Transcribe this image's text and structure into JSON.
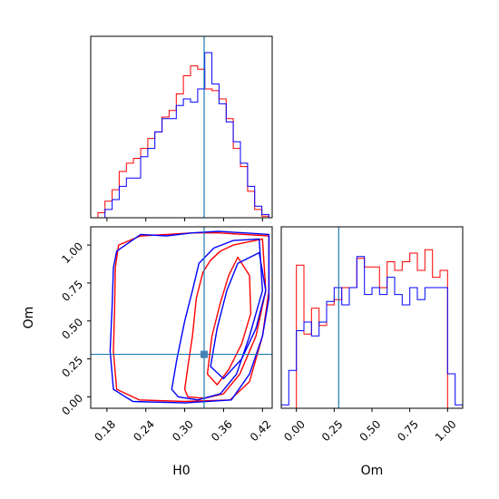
{
  "chart_data": [
    {
      "panel": "H0-marginal",
      "type": "histogram",
      "x_range": [
        0.155,
        0.435
      ],
      "truth": 0.33,
      "bin_edges": [
        0.155,
        0.166,
        0.177,
        0.188,
        0.199,
        0.21,
        0.221,
        0.232,
        0.243,
        0.254,
        0.265,
        0.276,
        0.287,
        0.298,
        0.309,
        0.32,
        0.331,
        0.342,
        0.353,
        0.364,
        0.375,
        0.386,
        0.397,
        0.408,
        0.419,
        0.43
      ],
      "series": [
        {
          "name": "red",
          "color": "#ff0000",
          "values": [
            0.0,
            0.03,
            0.1,
            0.17,
            0.28,
            0.33,
            0.36,
            0.42,
            0.48,
            0.52,
            0.61,
            0.65,
            0.75,
            0.86,
            0.92,
            0.9,
            0.78,
            0.77,
            0.72,
            0.6,
            0.42,
            0.31,
            0.16,
            0.05,
            0.01
          ]
        },
        {
          "name": "blue",
          "color": "#0000ff",
          "values": [
            0.0,
            0.0,
            0.05,
            0.11,
            0.19,
            0.24,
            0.24,
            0.37,
            0.42,
            0.52,
            0.6,
            0.6,
            0.68,
            0.72,
            0.7,
            0.78,
            1.0,
            0.81,
            0.69,
            0.58,
            0.46,
            0.33,
            0.19,
            0.07,
            0.02
          ]
        }
      ]
    },
    {
      "panel": "Om-marginal",
      "type": "histogram",
      "x_range": [
        -0.1,
        1.1
      ],
      "truth": 0.28,
      "series": [
        {
          "name": "red",
          "color": "#ff0000",
          "bin_edges": [
            0.0,
            0.05,
            0.1,
            0.15,
            0.2,
            0.25,
            0.3,
            0.35,
            0.4,
            0.45,
            0.5,
            0.55,
            0.6,
            0.65,
            0.7,
            0.75,
            0.8,
            0.85,
            0.9,
            0.95,
            1.0
          ],
          "values": [
            0.83,
            0.43,
            0.58,
            0.48,
            0.6,
            0.63,
            0.7,
            0.7,
            0.87,
            0.82,
            0.82,
            0.7,
            0.85,
            0.8,
            0.85,
            0.9,
            0.8,
            0.92,
            0.76,
            0.8
          ]
        },
        {
          "name": "blue",
          "color": "#0000ff",
          "bin_edges": [
            -0.1,
            -0.05,
            0.0,
            0.05,
            0.1,
            0.15,
            0.2,
            0.25,
            0.3,
            0.35,
            0.4,
            0.45,
            0.5,
            0.55,
            0.6,
            0.65,
            0.7,
            0.75,
            0.8,
            0.85,
            0.9,
            0.95,
            1.0,
            1.05,
            1.1
          ],
          "values": [
            0.02,
            0.22,
            0.45,
            0.5,
            0.42,
            0.5,
            0.62,
            0.7,
            0.6,
            0.7,
            0.88,
            0.66,
            0.7,
            0.66,
            0.76,
            0.66,
            0.6,
            0.7,
            0.63,
            0.7,
            0.7,
            0.7,
            0.2,
            0.02
          ]
        }
      ]
    },
    {
      "panel": "H0-Om-contours",
      "type": "contour",
      "x_range": [
        0.155,
        0.435
      ],
      "y_range": [
        -0.075,
        1.12
      ],
      "xlabel": "H0",
      "ylabel": "Om",
      "x_ticks": [
        0.18,
        0.24,
        0.3,
        0.36,
        0.42
      ],
      "x_tick_labels": [
        "0.18",
        "0.24",
        "0.30",
        "0.36",
        "0.42"
      ],
      "y_ticks": [
        0.0,
        0.25,
        0.5,
        0.75,
        1.0
      ],
      "y_tick_labels": [
        "0.00",
        "0.25",
        "0.50",
        "0.75",
        "1.00"
      ],
      "truth": {
        "x": 0.33,
        "y": 0.28
      },
      "truth_marker_color": "#4682b4",
      "series": [
        {
          "name": "red",
          "color": "#ff0000",
          "contours": [
            [
              [
                0.198,
                1.0
              ],
              [
                0.232,
                1.06
              ],
              [
                0.272,
                1.07
              ],
              [
                0.312,
                1.08
              ],
              [
                0.352,
                1.08
              ],
              [
                0.392,
                1.07
              ],
              [
                0.43,
                1.06
              ],
              [
                0.43,
                0.7
              ],
              [
                0.42,
                0.4
              ],
              [
                0.4,
                0.1
              ],
              [
                0.37,
                -0.02
              ],
              [
                0.3,
                -0.03
              ],
              [
                0.23,
                -0.02
              ],
              [
                0.195,
                0.05
              ],
              [
                0.19,
                0.3
              ],
              [
                0.192,
                0.6
              ],
              [
                0.193,
                0.85
              ],
              [
                0.198,
                1.0
              ]
            ],
            [
              [
                0.3,
                0.05
              ],
              [
                0.305,
                0.2
              ],
              [
                0.312,
                0.4
              ],
              [
                0.318,
                0.65
              ],
              [
                0.328,
                0.82
              ],
              [
                0.34,
                0.9
              ],
              [
                0.355,
                0.96
              ],
              [
                0.375,
                1.0
              ],
              [
                0.42,
                1.04
              ],
              [
                0.425,
                0.7
              ],
              [
                0.41,
                0.4
              ],
              [
                0.385,
                0.15
              ],
              [
                0.36,
                0.02
              ],
              [
                0.33,
                -0.01
              ],
              [
                0.305,
                0.0
              ],
              [
                0.3,
                0.05
              ]
            ],
            [
              [
                0.335,
                0.15
              ],
              [
                0.342,
                0.4
              ],
              [
                0.355,
                0.62
              ],
              [
                0.368,
                0.8
              ],
              [
                0.382,
                0.92
              ],
              [
                0.4,
                0.8
              ],
              [
                0.402,
                0.55
              ],
              [
                0.388,
                0.35
              ],
              [
                0.368,
                0.18
              ],
              [
                0.35,
                0.08
              ],
              [
                0.335,
                0.15
              ]
            ]
          ]
        },
        {
          "name": "blue",
          "color": "#0000ff",
          "contours": [
            [
              [
                0.195,
                0.96
              ],
              [
                0.232,
                1.07
              ],
              [
                0.272,
                1.06
              ],
              [
                0.312,
                1.08
              ],
              [
                0.352,
                1.09
              ],
              [
                0.392,
                1.08
              ],
              [
                0.43,
                1.07
              ],
              [
                0.43,
                0.65
              ],
              [
                0.42,
                0.4
              ],
              [
                0.4,
                0.15
              ],
              [
                0.372,
                -0.02
              ],
              [
                0.3,
                -0.04
              ],
              [
                0.22,
                -0.03
              ],
              [
                0.19,
                0.05
              ],
              [
                0.185,
                0.3
              ],
              [
                0.188,
                0.6
              ],
              [
                0.19,
                0.85
              ],
              [
                0.195,
                0.96
              ]
            ],
            [
              [
                0.28,
                0.05
              ],
              [
                0.288,
                0.25
              ],
              [
                0.3,
                0.5
              ],
              [
                0.312,
                0.7
              ],
              [
                0.322,
                0.88
              ],
              [
                0.345,
                0.98
              ],
              [
                0.375,
                1.03
              ],
              [
                0.415,
                1.04
              ],
              [
                0.42,
                0.7
              ],
              [
                0.4,
                0.4
              ],
              [
                0.38,
                0.15
              ],
              [
                0.355,
                0.02
              ],
              [
                0.32,
                -0.02
              ],
              [
                0.29,
                0.0
              ],
              [
                0.28,
                0.05
              ]
            ],
            [
              [
                0.34,
                0.2
              ],
              [
                0.35,
                0.45
              ],
              [
                0.365,
                0.7
              ],
              [
                0.382,
                0.88
              ],
              [
                0.415,
                0.95
              ],
              [
                0.425,
                0.7
              ],
              [
                0.41,
                0.45
              ],
              [
                0.388,
                0.25
              ],
              [
                0.36,
                0.12
              ],
              [
                0.34,
                0.2
              ]
            ]
          ]
        }
      ]
    }
  ]
}
